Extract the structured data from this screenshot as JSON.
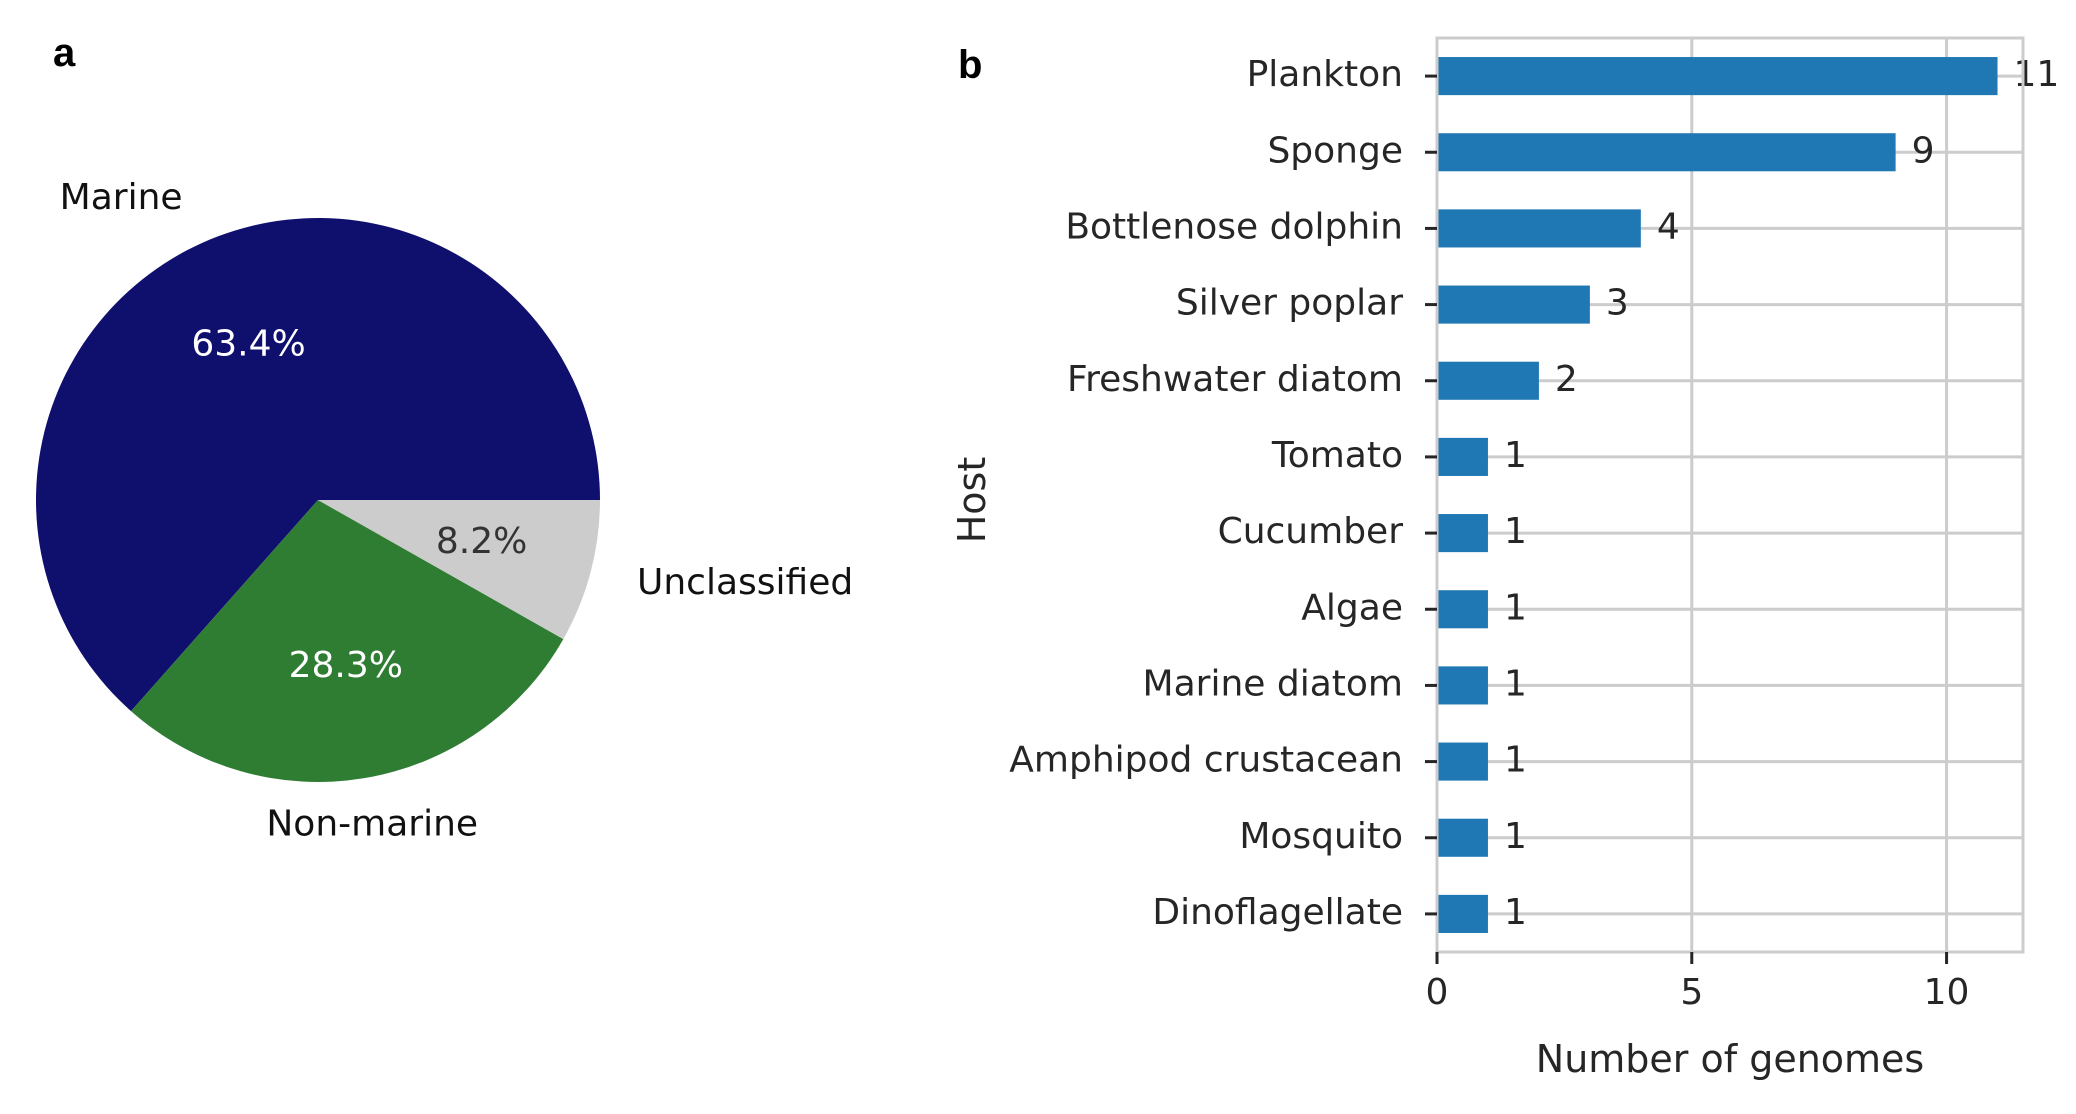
{
  "panels": {
    "a": "a",
    "b": "b"
  },
  "chart_data": [
    {
      "type": "pie",
      "labels": [
        "Marine",
        "Non-marine",
        "Unclassified"
      ],
      "values": [
        63.4,
        28.3,
        8.2
      ],
      "value_labels": [
        "63.4%",
        "28.3%",
        "8.2%"
      ],
      "colors": [
        "#0f0f6e",
        "#2e7d32",
        "#cccccc"
      ],
      "pct_text_colors": [
        "#ffffff",
        "#ffffff",
        "#333333"
      ]
    },
    {
      "type": "bar",
      "orientation": "horizontal",
      "categories": [
        "Plankton",
        "Sponge",
        "Bottlenose dolphin",
        "Silver poplar",
        "Freshwater diatom",
        "Tomato",
        "Cucumber",
        "Algae",
        "Marine diatom",
        "Amphipod crustacean",
        "Mosquito",
        "Dinoflagellate"
      ],
      "values": [
        11,
        9,
        4,
        3,
        2,
        1,
        1,
        1,
        1,
        1,
        1,
        1
      ],
      "xlabel": "Number of genomes",
      "ylabel": "Host",
      "xlim": [
        0,
        11.5
      ],
      "xticks": [
        "0",
        "5",
        "10"
      ],
      "bar_color": "#1f77b4",
      "grid": true
    }
  ]
}
